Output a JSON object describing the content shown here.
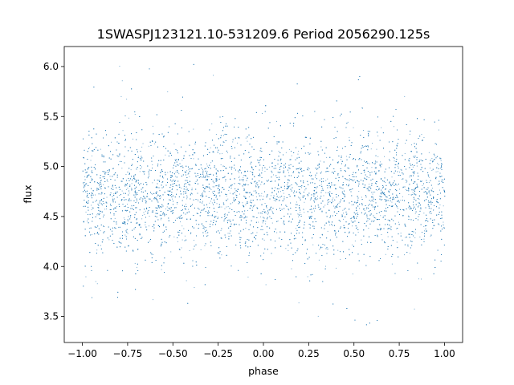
{
  "chart_data": {
    "type": "scatter",
    "title": "1SWASPJ123121.10-531209.6 Period 2056290.125s",
    "xlabel": "phase",
    "ylabel": "flux",
    "xlim": [
      -1.1,
      1.1
    ],
    "ylim": [
      3.24,
      6.2
    ],
    "xticks": [
      -1.0,
      -0.75,
      -0.5,
      -0.25,
      0.0,
      0.25,
      0.5,
      0.75,
      1.0
    ],
    "xtick_labels": [
      "−1.00",
      "−0.75",
      "−0.50",
      "−0.25",
      "0.00",
      "0.25",
      "0.50",
      "0.75",
      "1.00"
    ],
    "yticks": [
      3.5,
      4.0,
      4.5,
      5.0,
      5.5,
      6.0
    ],
    "ytick_labels": [
      "3.5",
      "4.0",
      "4.5",
      "5.0",
      "5.5",
      "6.0"
    ],
    "grid": false,
    "series": [
      {
        "color": "#1f77b4",
        "marker": "point",
        "x_range": [
          -1.0,
          1.0
        ],
        "y_center": 4.72,
        "y_spread": 0.28,
        "y_extent": [
          3.35,
          6.05
        ]
      }
    ]
  }
}
